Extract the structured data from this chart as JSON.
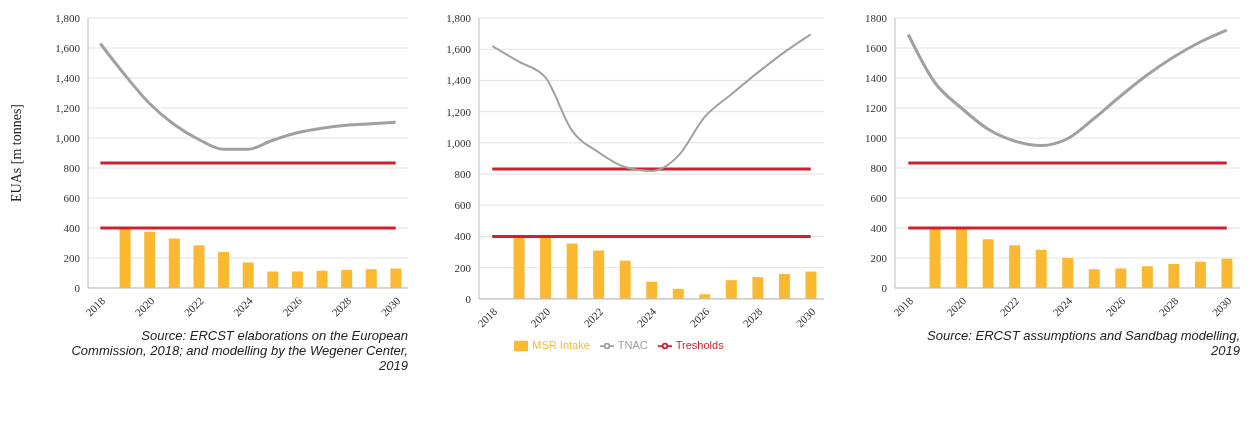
{
  "chart_data": [
    {
      "type": "bar",
      "ylabel": "EUAs [m tonnes]",
      "categories": [
        "2018",
        null,
        "2020",
        null,
        "2022",
        null,
        "2024",
        null,
        "2026",
        null,
        "2028",
        null,
        "2030"
      ],
      "series": [
        {
          "color": "#fbb931",
          "values": [
            null,
            400,
            375,
            330,
            285,
            240,
            170,
            110,
            110,
            115,
            120,
            125,
            130
          ]
        },
        {
          "type": "line",
          "color": "#d0202e",
          "values": [
            833,
            833,
            833,
            833,
            833,
            833,
            833,
            833,
            833,
            833,
            833,
            833,
            833
          ]
        },
        {
          "type": "line",
          "color": "#d0202e",
          "values": [
            400,
            400,
            400,
            400,
            400,
            400,
            400,
            400,
            400,
            400,
            400,
            400,
            400
          ]
        },
        {
          "type": "line",
          "color": "#a0a0a0",
          "values": [
            1630,
            1420,
            1230,
            1090,
            990,
            925,
            925,
            985,
            1035,
            1065,
            1085,
            1095,
            1105
          ]
        }
      ],
      "ylim": [
        0,
        1800
      ],
      "yticks": [
        0,
        200,
        400,
        600,
        800,
        {
          "value": 1000,
          "label": "1,000"
        },
        {
          "value": 1200,
          "label": "1,200"
        },
        {
          "value": 1400,
          "label": "1,400"
        },
        {
          "value": 1600,
          "label": "1,600"
        },
        {
          "value": 1800,
          "label": "1,800"
        }
      ],
      "grid": "y",
      "legend": false,
      "marker": "none",
      "annotations": [
        "Source: ERCST elaborations on the European Commission, 2018; and modelling by the Wegener Center, 2019"
      ]
    },
    {
      "type": "bar",
      "categories": [
        "2018",
        null,
        "2020",
        null,
        "2022",
        null,
        "2024",
        null,
        "2026",
        null,
        "2028",
        null,
        "2030"
      ],
      "series": [
        {
          "name": "MSR Intake",
          "color": "#fbb931",
          "values": [
            null,
            400,
            400,
            355,
            310,
            245,
            110,
            65,
            30,
            120,
            140,
            160,
            175
          ]
        },
        {
          "name": "Tresholds",
          "type": "line",
          "color": "#d0202e",
          "values": [
            833,
            833,
            833,
            833,
            833,
            833,
            833,
            833,
            833,
            833,
            833,
            833,
            833
          ]
        },
        {
          "type": "line",
          "color": "#d0202e",
          "values": [
            400,
            400,
            400,
            400,
            400,
            400,
            400,
            400,
            400,
            400,
            400,
            400,
            400
          ]
        },
        {
          "name": "TNAC",
          "type": "line",
          "color": "#a0a0a0",
          "values": [
            1620,
            1520,
            1420,
            1080,
            940,
            845,
            820,
            915,
            1165,
            1310,
            1450,
            1580,
            1695
          ]
        }
      ],
      "ylim": [
        0,
        1800
      ],
      "yticks": [
        0,
        200,
        400,
        600,
        800,
        {
          "value": 1000,
          "label": "1,000"
        },
        {
          "value": 1200,
          "label": "1,200"
        },
        {
          "value": 1400,
          "label": "1,400"
        },
        {
          "value": 1600,
          "label": "1,600"
        },
        {
          "value": 1800,
          "label": "1,800"
        }
      ],
      "grid": "y",
      "legend": "bottom",
      "marker": "none"
    },
    {
      "type": "bar",
      "categories": [
        "2018",
        null,
        "2020",
        null,
        "2022",
        null,
        "2024",
        null,
        "2026",
        null,
        "2028",
        null,
        "2030"
      ],
      "series": [
        {
          "color": "#fbb931",
          "values": [
            null,
            400,
            400,
            325,
            285,
            255,
            200,
            125,
            130,
            145,
            160,
            175,
            195
          ]
        },
        {
          "type": "line",
          "color": "#d0202e",
          "values": [
            833,
            833,
            833,
            833,
            833,
            833,
            833,
            833,
            833,
            833,
            833,
            833,
            833
          ]
        },
        {
          "type": "line",
          "color": "#d0202e",
          "values": [
            400,
            400,
            400,
            400,
            400,
            400,
            400,
            400,
            400,
            400,
            400,
            400,
            400
          ]
        },
        {
          "type": "line",
          "color": "#a0a0a0",
          "values": [
            1690,
            1370,
            1200,
            1060,
            980,
            950,
            995,
            1130,
            1280,
            1420,
            1540,
            1640,
            1720
          ]
        }
      ],
      "ylim": [
        0,
        1800
      ],
      "yticks": [
        0,
        200,
        400,
        600,
        800,
        1000,
        1200,
        1400,
        1600,
        1800
      ],
      "grid": "y",
      "legend": false,
      "marker": "none",
      "annotations": [
        "Source: ERCST assumptions and Sandbag modelling, 2019"
      ]
    }
  ]
}
